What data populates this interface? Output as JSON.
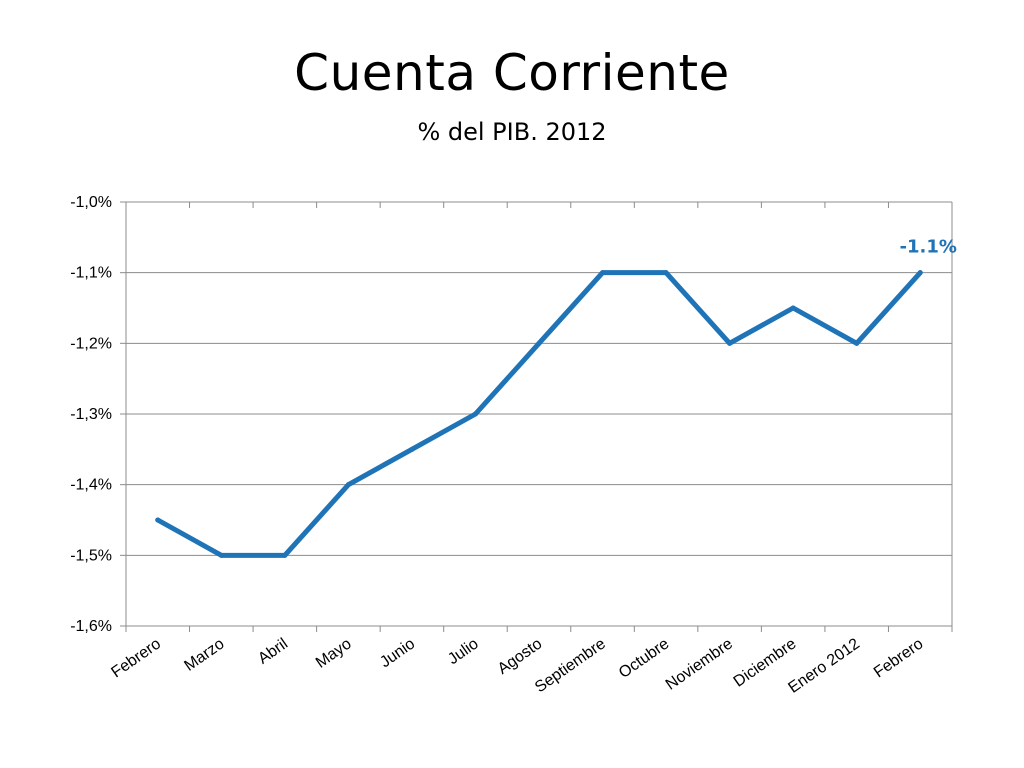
{
  "title": "Cuenta Corriente",
  "subtitle": "% del PIB. 2012",
  "chart_data": {
    "type": "line",
    "title": "Cuenta Corriente",
    "subtitle": "% del PIB. 2012",
    "xlabel": "",
    "ylabel": "",
    "categories": [
      "Febrero",
      "Marzo",
      "Abril",
      "Mayo",
      "Junio",
      "Julio",
      "Agosto",
      "Septiembre",
      "Octubre",
      "Noviembre",
      "Diciembre",
      "Enero 2012",
      "Febrero"
    ],
    "series": [
      {
        "values": [
          -1.45,
          -1.5,
          -1.5,
          -1.4,
          -1.35,
          -1.3,
          -1.2,
          -1.1,
          -1.1,
          -1.2,
          -1.15,
          -1.2,
          -1.1
        ]
      }
    ],
    "ylim": [
      -1.6,
      -1.0
    ],
    "yticks": [
      {
        "value": -1.0,
        "label": "-1,0%"
      },
      {
        "value": -1.1,
        "label": "-1,1%"
      },
      {
        "value": -1.2,
        "label": "-1,2%"
      },
      {
        "value": -1.3,
        "label": "-1,3%"
      },
      {
        "value": -1.4,
        "label": "-1,4%"
      },
      {
        "value": -1.5,
        "label": "-1,5%"
      },
      {
        "value": -1.6,
        "label": "-1,6%"
      }
    ],
    "annotation": {
      "text": "-1.1%",
      "index": 12
    },
    "grid": true,
    "legend": "none",
    "line_color": "#1f73b7"
  }
}
